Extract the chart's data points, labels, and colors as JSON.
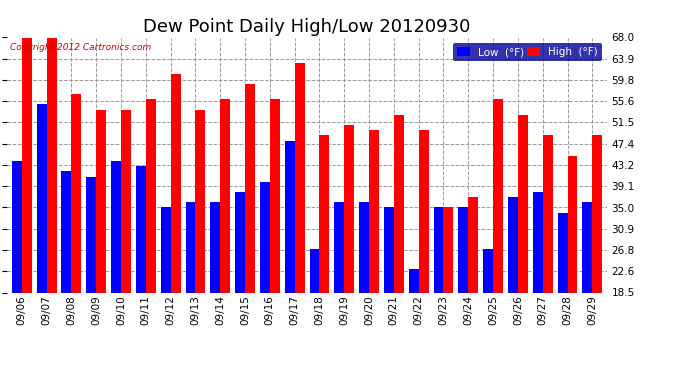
{
  "title": "Dew Point Daily High/Low 20120930",
  "copyright": "Copyright 2012 Cartronics.com",
  "dates": [
    "09/06",
    "09/07",
    "09/08",
    "09/09",
    "09/10",
    "09/11",
    "09/12",
    "09/13",
    "09/14",
    "09/15",
    "09/16",
    "09/17",
    "09/18",
    "09/19",
    "09/20",
    "09/21",
    "09/22",
    "09/23",
    "09/24",
    "09/25",
    "09/26",
    "09/27",
    "09/28",
    "09/29"
  ],
  "low_values": [
    44.0,
    55.0,
    42.0,
    41.0,
    44.0,
    43.0,
    35.0,
    36.0,
    36.0,
    38.0,
    40.0,
    48.0,
    27.0,
    36.0,
    36.0,
    35.0,
    23.0,
    35.0,
    35.0,
    27.0,
    37.0,
    38.0,
    34.0,
    36.0
  ],
  "high_values": [
    68.0,
    68.0,
    57.0,
    54.0,
    54.0,
    56.0,
    61.0,
    54.0,
    56.0,
    59.0,
    56.0,
    63.0,
    49.0,
    51.0,
    50.0,
    53.0,
    50.0,
    35.0,
    37.0,
    56.0,
    53.0,
    49.0,
    45.0,
    49.0
  ],
  "ylim": [
    18.5,
    68.0
  ],
  "yticks": [
    18.5,
    22.6,
    26.8,
    30.9,
    35.0,
    39.1,
    43.2,
    47.4,
    51.5,
    55.6,
    59.8,
    63.9,
    68.0
  ],
  "bar_width": 0.4,
  "low_color": "#0000ff",
  "high_color": "#ff0000",
  "bg_color": "#ffffff",
  "grid_color": "#999999",
  "title_fontsize": 13,
  "tick_fontsize": 7.5,
  "label_color": "#000000",
  "legend_bg": "#000099"
}
